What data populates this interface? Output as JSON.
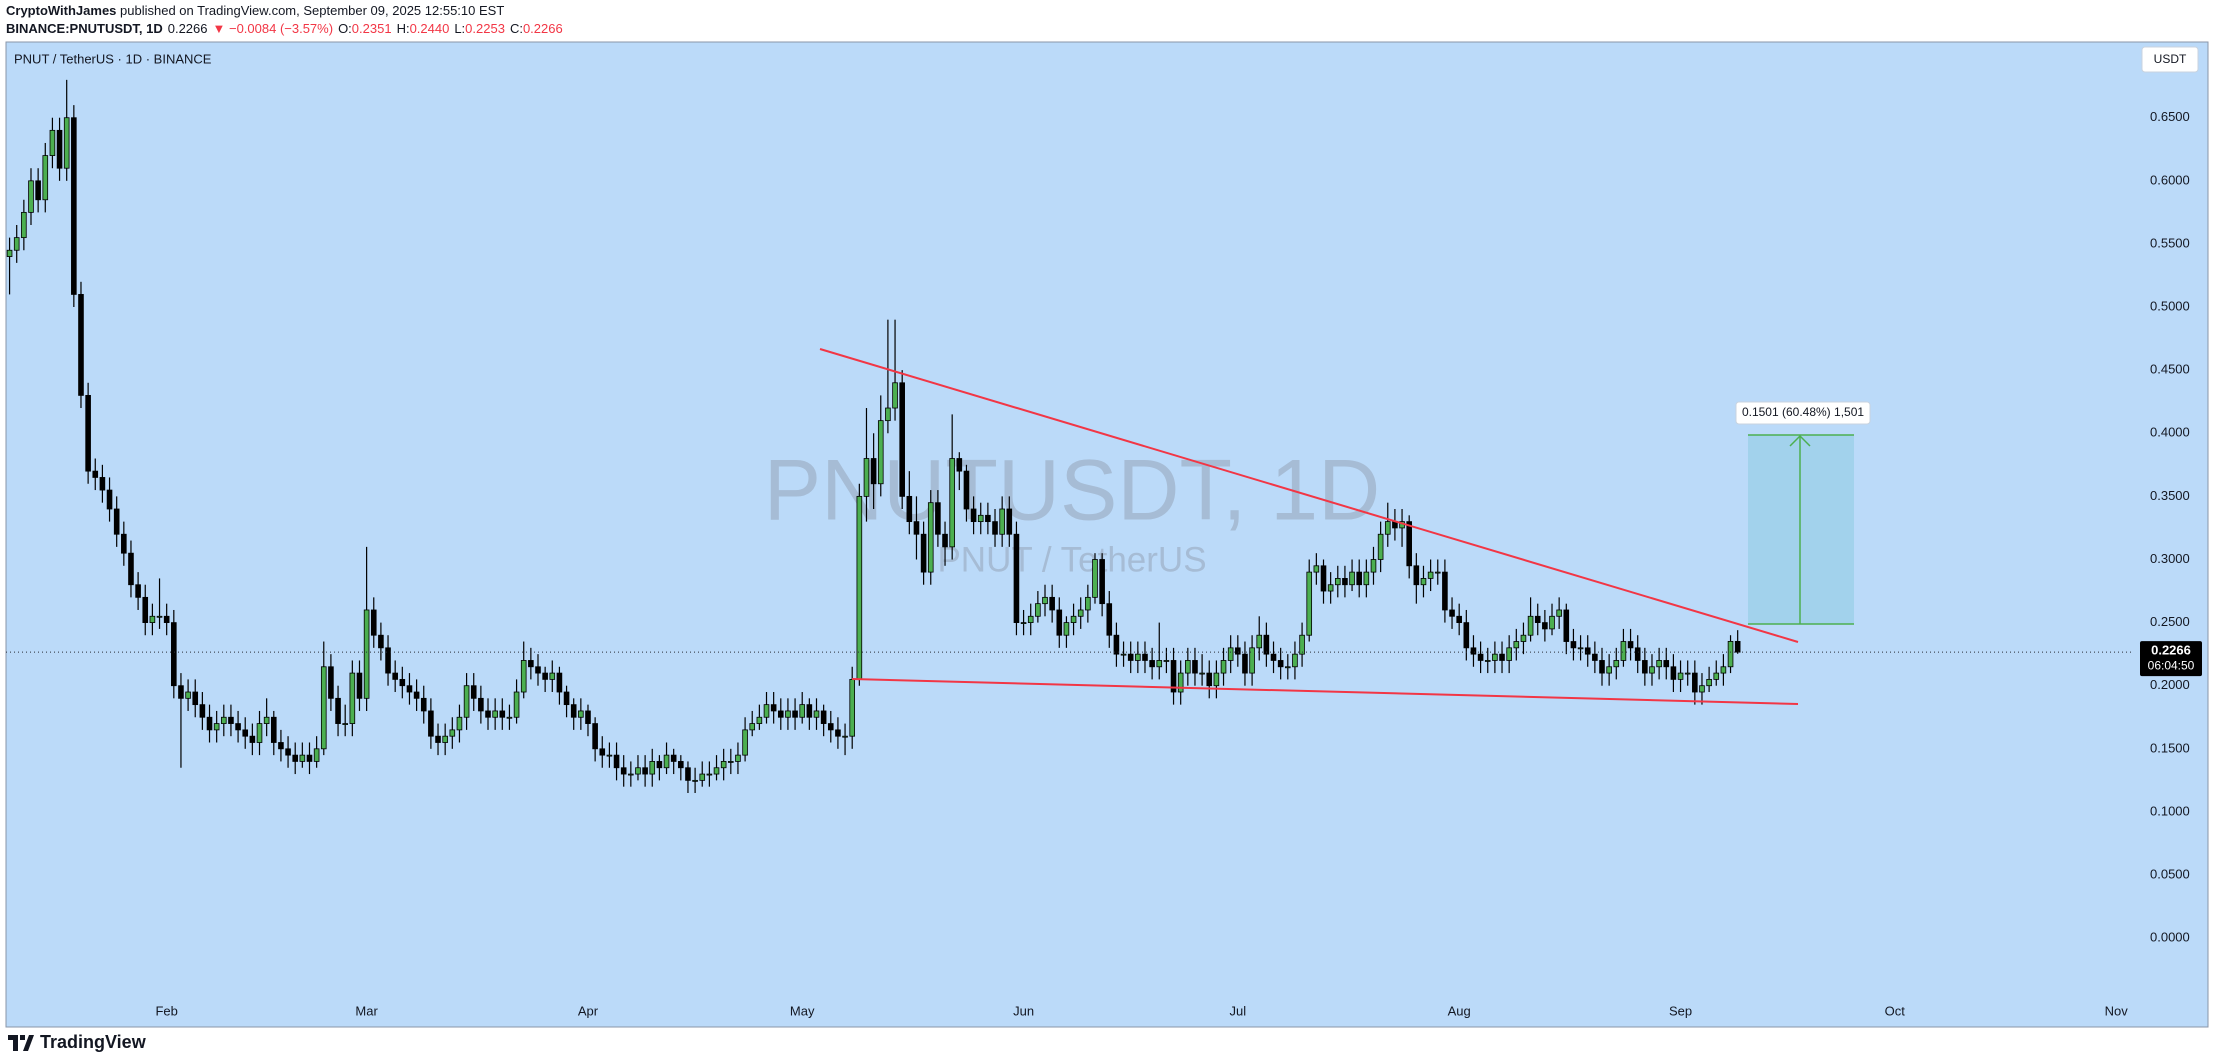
{
  "header": {
    "author": "CryptoWithJames",
    "published": "published on TradingView.com, September 09, 2025 12:55:10 EST",
    "symbol": "BINANCE:PNUTUSDT, 1D",
    "price": "0.2266",
    "change": "▼ −0.0084 (−3.57%)",
    "o_label": "O:",
    "o": "0.2351",
    "h_label": "H:",
    "h": "0.2440",
    "l_label": "L:",
    "l": "0.2253",
    "c_label": "C:",
    "c": "0.2266"
  },
  "chart_data": {
    "type": "candlestick",
    "title": "PNUT / TetherUS · 1D · BINANCE",
    "watermark": "PNUTUSDT, 1D",
    "watermark_subtitle": "PNUT / TetherUS",
    "currency": "USDT",
    "countdown": "06:04:50",
    "measure_label": "0.1501 (60.48%) 1,501",
    "up_color": "#4caf50",
    "down_color": "#000000",
    "grid": false,
    "open": [
      0.54,
      0.545,
      0.555,
      0.575,
      0.6,
      0.585,
      0.62,
      0.64,
      0.61,
      0.65,
      0.51,
      0.43,
      0.37,
      0.365,
      0.355,
      0.34,
      0.32,
      0.305,
      0.28,
      0.27,
      0.25,
      0.255,
      0.255,
      0.25,
      0.2,
      0.19,
      0.195,
      0.185,
      0.175,
      0.165,
      0.17,
      0.175,
      0.17,
      0.165,
      0.16,
      0.155,
      0.17,
      0.175,
      0.155,
      0.15,
      0.145,
      0.14,
      0.145,
      0.14,
      0.15,
      0.215,
      0.19,
      0.17,
      0.17,
      0.21,
      0.19,
      0.26,
      0.24,
      0.23,
      0.21,
      0.205,
      0.2,
      0.195,
      0.19,
      0.18,
      0.16,
      0.155,
      0.16,
      0.165,
      0.175,
      0.2,
      0.19,
      0.18,
      0.175,
      0.18,
      0.175,
      0.175,
      0.195,
      0.22,
      0.215,
      0.21,
      0.205,
      0.21,
      0.195,
      0.185,
      0.175,
      0.18,
      0.17,
      0.15,
      0.145,
      0.145,
      0.135,
      0.13,
      0.13,
      0.135,
      0.13,
      0.14,
      0.135,
      0.145,
      0.14,
      0.135,
      0.125,
      0.125,
      0.13,
      0.13,
      0.135,
      0.14,
      0.14,
      0.145,
      0.165,
      0.17,
      0.175,
      0.185,
      0.18,
      0.175,
      0.18,
      0.175,
      0.185,
      0.175,
      0.18,
      0.17,
      0.165,
      0.16,
      0.16,
      0.205,
      0.35,
      0.38,
      0.36,
      0.41,
      0.42,
      0.44,
      0.35,
      0.33,
      0.32,
      0.29,
      0.345,
      0.32,
      0.31,
      0.38,
      0.37,
      0.34,
      0.33,
      0.335,
      0.33,
      0.32,
      0.34,
      0.32,
      0.25,
      0.25,
      0.255,
      0.265,
      0.27,
      0.26,
      0.24,
      0.25,
      0.255,
      0.26,
      0.27,
      0.3,
      0.265,
      0.24,
      0.225,
      0.225,
      0.22,
      0.225,
      0.22,
      0.215,
      0.22,
      0.22,
      0.195,
      0.21,
      0.22,
      0.21,
      0.21,
      0.2,
      0.21,
      0.22,
      0.23,
      0.225,
      0.21,
      0.23,
      0.24,
      0.225,
      0.22,
      0.215,
      0.215,
      0.225,
      0.24,
      0.29,
      0.295,
      0.275,
      0.28,
      0.285,
      0.28,
      0.29,
      0.28,
      0.29,
      0.3,
      0.32,
      0.33,
      0.325,
      0.33,
      0.295,
      0.28,
      0.285,
      0.29,
      0.29,
      0.26,
      0.255,
      0.25,
      0.23,
      0.225,
      0.22,
      0.22,
      0.225,
      0.22,
      0.23,
      0.235,
      0.24,
      0.255,
      0.25,
      0.245,
      0.255,
      0.26,
      0.235,
      0.23,
      0.23,
      0.225,
      0.22,
      0.21,
      0.215,
      0.22,
      0.235,
      0.23,
      0.22,
      0.21,
      0.215,
      0.22,
      0.215,
      0.205,
      0.21,
      0.21,
      0.195,
      0.2,
      0.205,
      0.21,
      0.215,
      0.2351
    ],
    "high": [
      0.555,
      0.565,
      0.585,
      0.61,
      0.61,
      0.63,
      0.65,
      0.65,
      0.68,
      0.66,
      0.52,
      0.44,
      0.38,
      0.375,
      0.365,
      0.35,
      0.33,
      0.315,
      0.29,
      0.28,
      0.265,
      0.285,
      0.265,
      0.26,
      0.21,
      0.205,
      0.205,
      0.195,
      0.185,
      0.18,
      0.185,
      0.185,
      0.18,
      0.175,
      0.17,
      0.18,
      0.19,
      0.18,
      0.165,
      0.16,
      0.155,
      0.155,
      0.155,
      0.16,
      0.235,
      0.225,
      0.2,
      0.185,
      0.22,
      0.22,
      0.31,
      0.27,
      0.25,
      0.24,
      0.22,
      0.215,
      0.21,
      0.205,
      0.2,
      0.19,
      0.17,
      0.17,
      0.175,
      0.185,
      0.21,
      0.21,
      0.2,
      0.19,
      0.19,
      0.19,
      0.185,
      0.205,
      0.235,
      0.23,
      0.225,
      0.215,
      0.22,
      0.215,
      0.2,
      0.19,
      0.19,
      0.185,
      0.175,
      0.16,
      0.155,
      0.155,
      0.145,
      0.14,
      0.145,
      0.145,
      0.15,
      0.145,
      0.155,
      0.15,
      0.145,
      0.14,
      0.135,
      0.14,
      0.14,
      0.145,
      0.15,
      0.15,
      0.155,
      0.175,
      0.18,
      0.185,
      0.195,
      0.195,
      0.19,
      0.19,
      0.19,
      0.195,
      0.19,
      0.19,
      0.185,
      0.18,
      0.175,
      0.17,
      0.215,
      0.36,
      0.42,
      0.4,
      0.43,
      0.49,
      0.49,
      0.45,
      0.37,
      0.35,
      0.33,
      0.355,
      0.355,
      0.33,
      0.415,
      0.385,
      0.375,
      0.35,
      0.345,
      0.345,
      0.34,
      0.35,
      0.35,
      0.33,
      0.26,
      0.265,
      0.275,
      0.28,
      0.28,
      0.27,
      0.255,
      0.265,
      0.27,
      0.28,
      0.305,
      0.305,
      0.275,
      0.25,
      0.235,
      0.235,
      0.235,
      0.235,
      0.23,
      0.25,
      0.23,
      0.23,
      0.22,
      0.23,
      0.23,
      0.225,
      0.22,
      0.22,
      0.23,
      0.24,
      0.24,
      0.235,
      0.24,
      0.255,
      0.25,
      0.235,
      0.23,
      0.225,
      0.235,
      0.25,
      0.3,
      0.305,
      0.3,
      0.29,
      0.295,
      0.295,
      0.3,
      0.3,
      0.3,
      0.31,
      0.33,
      0.345,
      0.34,
      0.34,
      0.335,
      0.305,
      0.295,
      0.3,
      0.3,
      0.3,
      0.27,
      0.265,
      0.26,
      0.24,
      0.235,
      0.23,
      0.235,
      0.235,
      0.24,
      0.245,
      0.25,
      0.27,
      0.265,
      0.26,
      0.265,
      0.27,
      0.265,
      0.245,
      0.24,
      0.24,
      0.235,
      0.23,
      0.225,
      0.23,
      0.245,
      0.245,
      0.24,
      0.23,
      0.225,
      0.23,
      0.23,
      0.225,
      0.22,
      0.22,
      0.22,
      0.21,
      0.215,
      0.22,
      0.225,
      0.24,
      0.244
    ],
    "low": [
      0.51,
      0.535,
      0.545,
      0.565,
      0.575,
      0.575,
      0.61,
      0.6,
      0.6,
      0.5,
      0.42,
      0.36,
      0.355,
      0.345,
      0.33,
      0.31,
      0.295,
      0.27,
      0.26,
      0.24,
      0.24,
      0.245,
      0.24,
      0.19,
      0.135,
      0.18,
      0.175,
      0.165,
      0.155,
      0.155,
      0.16,
      0.16,
      0.155,
      0.15,
      0.145,
      0.145,
      0.16,
      0.145,
      0.14,
      0.135,
      0.13,
      0.135,
      0.13,
      0.135,
      0.145,
      0.18,
      0.16,
      0.16,
      0.16,
      0.18,
      0.18,
      0.23,
      0.22,
      0.2,
      0.195,
      0.19,
      0.185,
      0.18,
      0.17,
      0.15,
      0.145,
      0.145,
      0.15,
      0.155,
      0.165,
      0.18,
      0.17,
      0.165,
      0.165,
      0.165,
      0.165,
      0.17,
      0.19,
      0.205,
      0.2,
      0.195,
      0.195,
      0.185,
      0.175,
      0.165,
      0.165,
      0.16,
      0.14,
      0.135,
      0.135,
      0.125,
      0.12,
      0.12,
      0.125,
      0.12,
      0.12,
      0.125,
      0.13,
      0.13,
      0.125,
      0.115,
      0.115,
      0.12,
      0.12,
      0.125,
      0.125,
      0.13,
      0.13,
      0.14,
      0.16,
      0.165,
      0.17,
      0.17,
      0.165,
      0.165,
      0.165,
      0.17,
      0.165,
      0.165,
      0.16,
      0.155,
      0.15,
      0.145,
      0.15,
      0.2,
      0.33,
      0.34,
      0.35,
      0.4,
      0.41,
      0.34,
      0.32,
      0.3,
      0.28,
      0.28,
      0.31,
      0.295,
      0.3,
      0.355,
      0.33,
      0.32,
      0.32,
      0.32,
      0.31,
      0.31,
      0.31,
      0.24,
      0.24,
      0.24,
      0.25,
      0.255,
      0.25,
      0.23,
      0.23,
      0.24,
      0.245,
      0.25,
      0.265,
      0.255,
      0.23,
      0.215,
      0.215,
      0.21,
      0.21,
      0.21,
      0.205,
      0.205,
      0.21,
      0.185,
      0.185,
      0.2,
      0.2,
      0.2,
      0.19,
      0.19,
      0.2,
      0.21,
      0.215,
      0.2,
      0.2,
      0.22,
      0.215,
      0.21,
      0.205,
      0.205,
      0.205,
      0.215,
      0.235,
      0.28,
      0.265,
      0.265,
      0.27,
      0.27,
      0.275,
      0.27,
      0.27,
      0.28,
      0.29,
      0.31,
      0.315,
      0.31,
      0.285,
      0.265,
      0.27,
      0.275,
      0.28,
      0.25,
      0.245,
      0.24,
      0.22,
      0.215,
      0.21,
      0.21,
      0.21,
      0.21,
      0.21,
      0.22,
      0.225,
      0.235,
      0.24,
      0.235,
      0.24,
      0.245,
      0.225,
      0.22,
      0.22,
      0.215,
      0.21,
      0.2,
      0.2,
      0.205,
      0.215,
      0.22,
      0.21,
      0.2,
      0.2,
      0.205,
      0.205,
      0.195,
      0.195,
      0.2,
      0.185,
      0.185,
      0.195,
      0.2,
      0.2,
      0.21,
      0.2253
    ],
    "close": [
      0.545,
      0.555,
      0.575,
      0.6,
      0.585,
      0.62,
      0.64,
      0.61,
      0.65,
      0.51,
      0.43,
      0.37,
      0.365,
      0.355,
      0.34,
      0.32,
      0.305,
      0.28,
      0.27,
      0.25,
      0.255,
      0.255,
      0.25,
      0.2,
      0.19,
      0.195,
      0.185,
      0.175,
      0.165,
      0.17,
      0.175,
      0.17,
      0.165,
      0.16,
      0.155,
      0.17,
      0.175,
      0.155,
      0.15,
      0.145,
      0.14,
      0.145,
      0.14,
      0.15,
      0.215,
      0.19,
      0.17,
      0.17,
      0.21,
      0.19,
      0.26,
      0.24,
      0.23,
      0.21,
      0.205,
      0.2,
      0.195,
      0.19,
      0.18,
      0.16,
      0.155,
      0.16,
      0.165,
      0.175,
      0.2,
      0.19,
      0.18,
      0.175,
      0.18,
      0.175,
      0.175,
      0.195,
      0.22,
      0.215,
      0.21,
      0.205,
      0.21,
      0.195,
      0.185,
      0.175,
      0.18,
      0.17,
      0.15,
      0.145,
      0.145,
      0.135,
      0.13,
      0.13,
      0.135,
      0.13,
      0.14,
      0.135,
      0.145,
      0.14,
      0.135,
      0.125,
      0.125,
      0.13,
      0.13,
      0.135,
      0.14,
      0.14,
      0.145,
      0.165,
      0.17,
      0.175,
      0.185,
      0.18,
      0.175,
      0.18,
      0.175,
      0.185,
      0.175,
      0.18,
      0.17,
      0.165,
      0.16,
      0.16,
      0.205,
      0.35,
      0.38,
      0.36,
      0.41,
      0.42,
      0.44,
      0.35,
      0.33,
      0.32,
      0.29,
      0.345,
      0.32,
      0.31,
      0.38,
      0.37,
      0.34,
      0.33,
      0.335,
      0.33,
      0.32,
      0.34,
      0.32,
      0.25,
      0.25,
      0.255,
      0.265,
      0.27,
      0.26,
      0.24,
      0.25,
      0.255,
      0.26,
      0.27,
      0.3,
      0.265,
      0.24,
      0.225,
      0.225,
      0.22,
      0.225,
      0.22,
      0.215,
      0.22,
      0.22,
      0.195,
      0.21,
      0.22,
      0.21,
      0.21,
      0.2,
      0.21,
      0.22,
      0.23,
      0.225,
      0.21,
      0.23,
      0.24,
      0.225,
      0.22,
      0.215,
      0.215,
      0.225,
      0.24,
      0.29,
      0.295,
      0.275,
      0.28,
      0.285,
      0.28,
      0.29,
      0.28,
      0.29,
      0.3,
      0.32,
      0.33,
      0.325,
      0.33,
      0.295,
      0.28,
      0.285,
      0.29,
      0.29,
      0.26,
      0.255,
      0.25,
      0.23,
      0.225,
      0.22,
      0.22,
      0.225,
      0.22,
      0.23,
      0.235,
      0.24,
      0.255,
      0.25,
      0.245,
      0.255,
      0.26,
      0.235,
      0.23,
      0.23,
      0.225,
      0.22,
      0.21,
      0.215,
      0.22,
      0.235,
      0.23,
      0.22,
      0.21,
      0.215,
      0.22,
      0.215,
      0.205,
      0.21,
      0.21,
      0.195,
      0.2,
      0.205,
      0.21,
      0.215,
      0.2351,
      0.2266
    ],
    "xlim": [
      -0.5,
      297.5
    ],
    "xticks": [
      {
        "value": 22,
        "label": "Feb"
      },
      {
        "value": 50,
        "label": "Mar"
      },
      {
        "value": 81,
        "label": "Apr"
      },
      {
        "value": 111,
        "label": "May"
      },
      {
        "value": 142,
        "label": "Jun"
      },
      {
        "value": 172,
        "label": "Jul"
      },
      {
        "value": 203,
        "label": "Aug"
      },
      {
        "value": 234,
        "label": "Sep"
      },
      {
        "value": 264,
        "label": "Oct"
      },
      {
        "value": 295,
        "label": "Nov"
      }
    ],
    "ylim": [
      -0.0704,
      0.7092
    ],
    "yticks": [
      {
        "value": 0,
        "label": "0.0000"
      },
      {
        "value": 0.05,
        "label": "0.0500"
      },
      {
        "value": 0.1,
        "label": "0.1000"
      },
      {
        "value": 0.15,
        "label": "0.1500"
      },
      {
        "value": 0.2,
        "label": "0.2000"
      },
      {
        "value": 0.25,
        "label": "0.2500"
      },
      {
        "value": 0.3,
        "label": "0.3000"
      },
      {
        "value": 0.35,
        "label": "0.3500"
      },
      {
        "value": 0.4,
        "label": "0.4000"
      },
      {
        "value": 0.45,
        "label": "0.4500"
      },
      {
        "value": 0.5,
        "label": "0.5000"
      },
      {
        "value": 0.55,
        "label": "0.5500"
      },
      {
        "value": 0.6,
        "label": "0.6000"
      },
      {
        "value": 0.65,
        "label": "0.6500"
      }
    ]
  },
  "footer": {
    "brand": "TradingView"
  }
}
